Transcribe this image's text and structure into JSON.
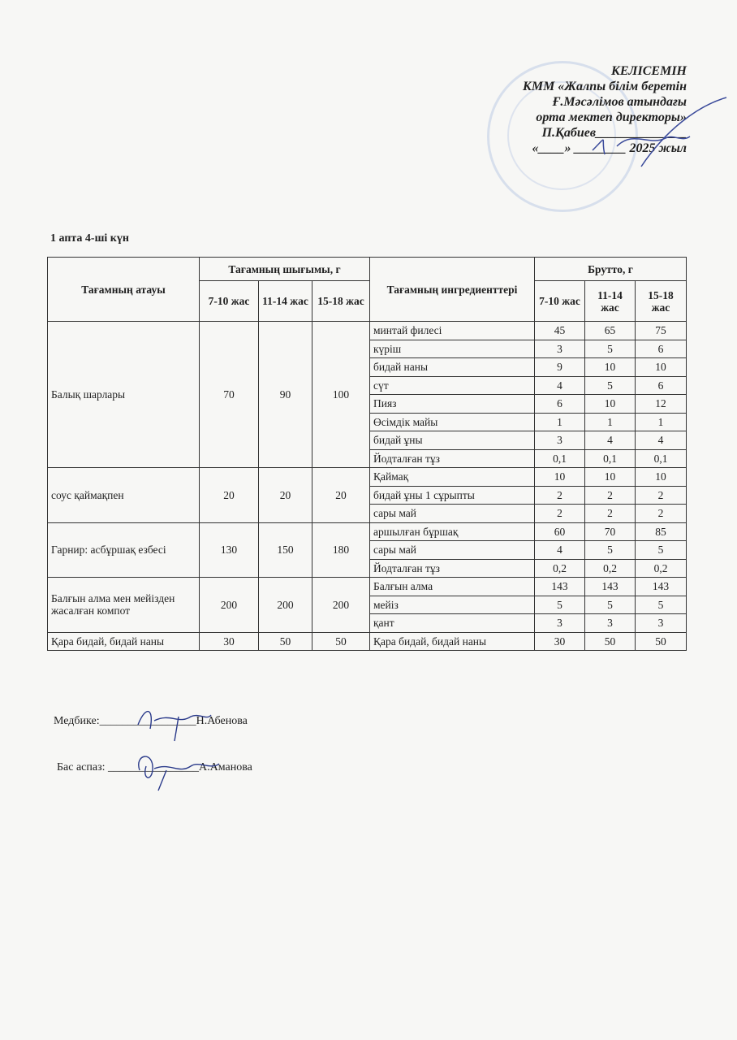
{
  "approval": {
    "lines": [
      "КЕЛІСЕМІН",
      "КММ «Жалпы білім беретін",
      "Ғ.Мәсәлімов атындағы",
      "орта мектеп  директоры»",
      "П.Қабиев______________",
      "«____» ________ 2025 жыл"
    ]
  },
  "day_title": "1 апта 4-ші күн",
  "table": {
    "headers": {
      "dish": "Тағамның атауы",
      "yield": "Тағамның шығымы, г",
      "ingredients": "Тағамның ингредиенттері",
      "gross": "Брутто, г",
      "ages": [
        "7-10 жас",
        "11-14 жас",
        "15-18 жас"
      ]
    },
    "dishes": [
      {
        "name": "Балық шарлары",
        "yield": [
          "70",
          "90",
          "100"
        ],
        "items": [
          [
            "минтай филесі",
            "45",
            "65",
            "75"
          ],
          [
            "күріш",
            "3",
            "5",
            "6"
          ],
          [
            "бидай наны",
            "9",
            "10",
            "10"
          ],
          [
            "сүт",
            "4",
            "5",
            "6"
          ],
          [
            "Пияз",
            "6",
            "10",
            "12"
          ],
          [
            "Өсімдік майы",
            "1",
            "1",
            "1"
          ],
          [
            "бидай ұны",
            "3",
            "4",
            "4"
          ],
          [
            "Йодталған тұз",
            "0,1",
            "0,1",
            "0,1"
          ]
        ]
      },
      {
        "name": "соус қаймақпен",
        "yield": [
          "20",
          "20",
          "20"
        ],
        "items": [
          [
            "Қаймақ",
            "10",
            "10",
            "10"
          ],
          [
            "бидай ұны 1 сұрыпты",
            "2",
            "2",
            "2"
          ],
          [
            "сары май",
            "2",
            "2",
            "2"
          ]
        ]
      },
      {
        "name": "Гарнир: асбұршақ езбесі",
        "yield": [
          "130",
          "150",
          "180"
        ],
        "items": [
          [
            "аршылған бұршақ",
            "60",
            "70",
            "85"
          ],
          [
            "сары май",
            "4",
            "5",
            "5"
          ],
          [
            "Йодталған тұз",
            "0,2",
            "0,2",
            "0,2"
          ]
        ]
      },
      {
        "name": "Балғын алма мен мейізден жасалған компот",
        "yield": [
          "200",
          "200",
          "200"
        ],
        "items": [
          [
            "Балғын алма",
            "143",
            "143",
            "143"
          ],
          [
            "мейіз",
            "5",
            "5",
            "5"
          ],
          [
            "қант",
            "3",
            "3",
            "3"
          ]
        ]
      },
      {
        "name": "Қара бидай, бидай наны",
        "yield": [
          "30",
          "50",
          "50"
        ],
        "items": [
          [
            "Қара бидай, бидай наны",
            "30",
            "50",
            "50"
          ]
        ]
      }
    ]
  },
  "signatures": {
    "nurse_label": "Медбике:",
    "nurse_line": "_________________",
    "nurse_name": "Н.Абенова",
    "cook_label": "Бас аспаз:",
    "cook_line": "________________",
    "cook_name": "А.Аманова"
  }
}
